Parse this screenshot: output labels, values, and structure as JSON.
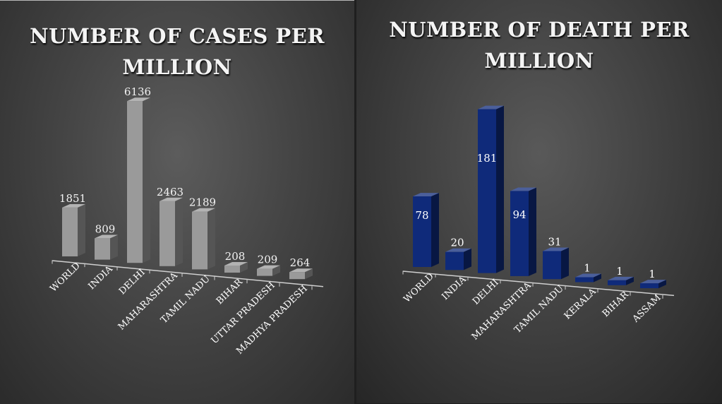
{
  "charts": [
    {
      "id": "cases",
      "title": "NUMBER OF CASES PER MILLION",
      "chart_data": {
        "type": "bar",
        "title": "NUMBER OF CASES PER MILLION",
        "categories": [
          "WORLD",
          "INDIA",
          "DELHI",
          "MAHARASHTRA",
          "TAMIL NADU",
          "BIHAR",
          "UTTAR PRADESH",
          "MADHYA PRADESH"
        ],
        "values": [
          1851,
          809,
          6136,
          2463,
          2189,
          208,
          209,
          264
        ],
        "bar_color": "#9a9a9a",
        "grid": false,
        "style": "3d-column"
      }
    },
    {
      "id": "deaths",
      "title": "NUMBER OF DEATH PER MILLION",
      "chart_data": {
        "type": "bar",
        "title": "NUMBER OF DEATH PER MILLION",
        "categories": [
          "WORLD",
          "INDIA",
          "DELHI",
          "MAHARASHTRA",
          "TAMIL NADU",
          "KERALA",
          "BIHAR",
          "ASSAM"
        ],
        "values": [
          78,
          20,
          181,
          94,
          31,
          1,
          1,
          1
        ],
        "bar_color": "#0f2a7a",
        "grid": false,
        "style": "3d-column"
      }
    }
  ]
}
